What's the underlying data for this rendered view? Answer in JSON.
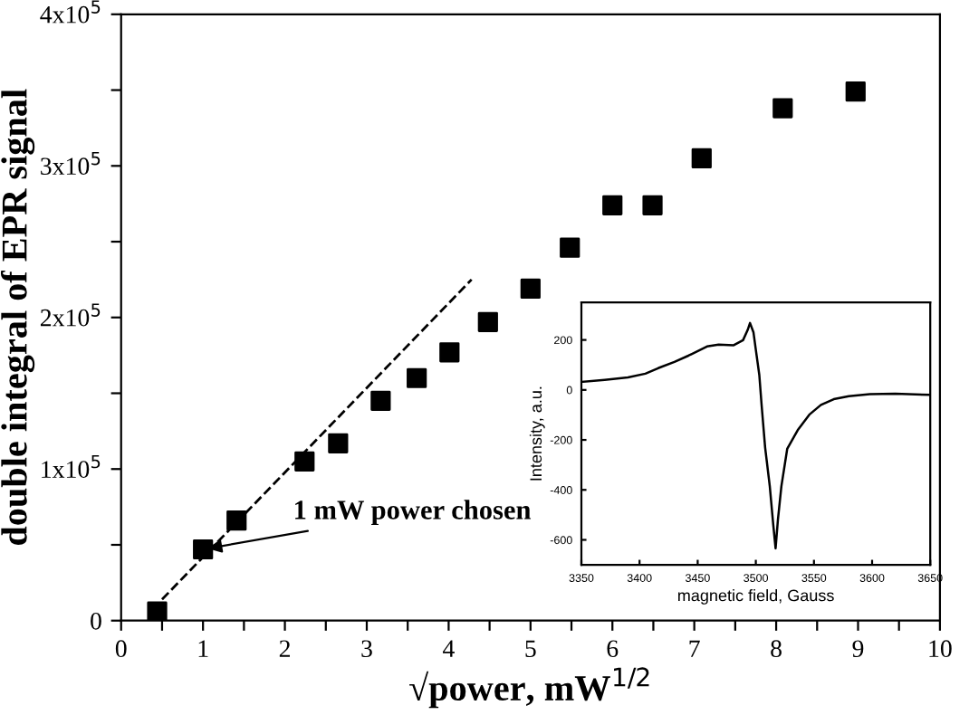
{
  "chart_data": [
    {
      "type": "scatter",
      "xlabel": "√power, mW$^{1/2}$",
      "ylabel": "double integral of EPR signal",
      "marker": "square",
      "grid": false,
      "legend": false,
      "xlim": [
        0,
        10
      ],
      "ylim": [
        0,
        400000
      ],
      "xticks": [
        0,
        {
          "value": 0.5,
          "label": null
        },
        1,
        {
          "value": 1.5,
          "label": null
        },
        2,
        {
          "value": 2.5,
          "label": null
        },
        3,
        {
          "value": 3.5,
          "label": null
        },
        4,
        {
          "value": 4.5,
          "label": null
        },
        5,
        {
          "value": 5.5,
          "label": null
        },
        6,
        {
          "value": 6.5,
          "label": null
        },
        7,
        {
          "value": 7.5,
          "label": null
        },
        8,
        {
          "value": 8.5,
          "label": null
        },
        9,
        {
          "value": 9.5,
          "label": null
        },
        10
      ],
      "yticks": [
        0,
        {
          "value": 50000,
          "label": null
        },
        {
          "value": 100000,
          "label": "1x10$^{5}$"
        },
        {
          "value": 150000,
          "label": null
        },
        {
          "value": 200000,
          "label": "2x10$^{5}$"
        },
        {
          "value": 250000,
          "label": null
        },
        {
          "value": 300000,
          "label": "3x10$^{5}$"
        },
        {
          "value": 350000,
          "label": null
        },
        {
          "value": 400000,
          "label": "4x10$^{5}$"
        }
      ],
      "series": [
        {
          "type": "scatter",
          "color": "#000000",
          "x": [
            0.44,
            1.0,
            1.41,
            2.24,
            2.65,
            3.17,
            3.61,
            4.01,
            4.48,
            5.0,
            5.48,
            6.0,
            6.49,
            7.09,
            8.08,
            8.97
          ],
          "values": [
            6000,
            47000,
            66000,
            105000,
            117000,
            145000,
            160000,
            177000,
            197000,
            219000,
            246000,
            274000,
            274000,
            305000,
            338000,
            349000
          ]
        },
        {
          "type": "line",
          "color": "#000000",
          "line_style": "dashed",
          "marker": "none",
          "x": [
            0.5,
            4.28
          ],
          "values": [
            14000,
            225000
          ]
        }
      ],
      "annotations": [
        {
          "text": "1 mW power chosen",
          "x": 1.0,
          "y": 47000
        }
      ]
    },
    {
      "type": "line",
      "xlabel": "magnetic field, Gauss",
      "ylabel": "Intensity, a.u.",
      "grid": false,
      "legend": false,
      "marker": "none",
      "line_style": "solid",
      "xlim": [
        3350,
        3650
      ],
      "ylim": [
        -700,
        350
      ],
      "xticks": [
        3350,
        3400,
        3450,
        3500,
        3550,
        3600,
        3650
      ],
      "yticks": [
        -600,
        -400,
        -200,
        0,
        200
      ],
      "series": [
        {
          "color": "#000000",
          "x": [
            3350,
            3370,
            3390,
            3405,
            3416,
            3430,
            3442,
            3458,
            3468,
            3481,
            3489,
            3493,
            3495,
            3498,
            3500,
            3503,
            3505,
            3508,
            3512,
            3515,
            3517,
            3519,
            3522,
            3527,
            3536,
            3546,
            3556,
            3567,
            3580,
            3598,
            3620,
            3650
          ],
          "values": [
            32,
            40,
            50,
            65,
            87,
            112,
            137,
            174,
            181,
            179,
            199,
            240,
            268,
            230,
            161,
            60,
            -62,
            -230,
            -385,
            -540,
            -634,
            -520,
            -385,
            -236,
            -161,
            -99,
            -60,
            -37,
            -25,
            -17,
            -15,
            -20
          ]
        }
      ]
    }
  ]
}
